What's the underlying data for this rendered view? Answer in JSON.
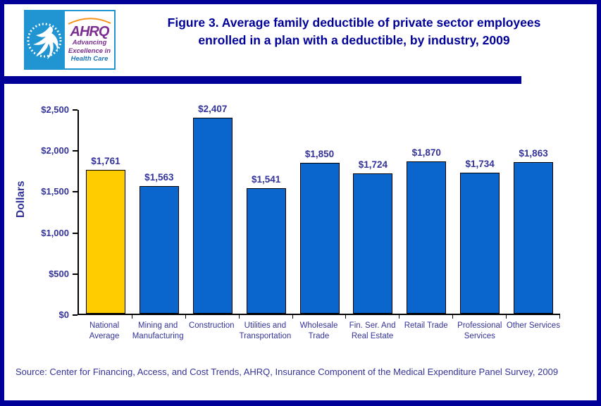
{
  "header": {
    "title_line1": "Figure 3. Average family deductible of private sector employees",
    "title_line2": "enrolled in a plan with a deductible, by industry, 2009"
  },
  "logo": {
    "agency": "AHRQ",
    "tagline_line1": "Advancing",
    "tagline_line2": "Excellence in",
    "tagline_line3": "Health Care"
  },
  "footer": {
    "source": "Source: Center for Financing, Access, and Cost Trends, AHRQ, Insurance Component of the Medical Expenditure Panel Survey, 2009"
  },
  "colors": {
    "border_navy": "#000099",
    "title_navy": "#000099",
    "label_navy": "#333399",
    "bar_blue": "#0A66CC",
    "bar_gold": "#FFCC00",
    "axis_black": "#000000",
    "logo_blue": "#2095D2",
    "ahrq_purple": "#7B2E90",
    "healthcare_blue": "#1B75BC",
    "arc_orange": "#F7941D"
  },
  "chart_data": {
    "type": "bar",
    "title": "Average family deductible of private sector employees enrolled in a plan with a deductible, by industry, 2009",
    "xlabel": "",
    "ylabel": "Dollars",
    "ylim": [
      0,
      2500
    ],
    "ytick_interval": 500,
    "ytick_labels": [
      "$0",
      "$500",
      "$1,000",
      "$1,500",
      "$2,000",
      "$2,500"
    ],
    "grid": false,
    "legend": false,
    "categories": [
      "National Average",
      "Mining and Manufacturing",
      "Construction",
      "Utilities and Transportation",
      "Wholesale Trade",
      "Fin. Ser. And Real Estate",
      "Retail Trade",
      "Professional Services",
      "Other Services"
    ],
    "category_label_lines": [
      [
        "National",
        "Average"
      ],
      [
        "Mining and",
        "Manufacturing"
      ],
      [
        "Construction"
      ],
      [
        "Utilities and",
        "Transportation"
      ],
      [
        "Wholesale",
        "Trade"
      ],
      [
        "Fin. Ser. And",
        "Real Estate"
      ],
      [
        "Retail Trade"
      ],
      [
        "Professional",
        "Services"
      ],
      [
        "Other Services"
      ]
    ],
    "values": [
      1761,
      1563,
      2407,
      1541,
      1850,
      1724,
      1870,
      1734,
      1863
    ],
    "value_labels": [
      "$1,761",
      "$1,563",
      "$2,407",
      "$1,541",
      "$1,850",
      "$1,724",
      "$1,870",
      "$1,734",
      "$1,863"
    ],
    "bar_colors": [
      "#FFCC00",
      "#0A66CC",
      "#0A66CC",
      "#0A66CC",
      "#0A66CC",
      "#0A66CC",
      "#0A66CC",
      "#0A66CC",
      "#0A66CC"
    ]
  }
}
